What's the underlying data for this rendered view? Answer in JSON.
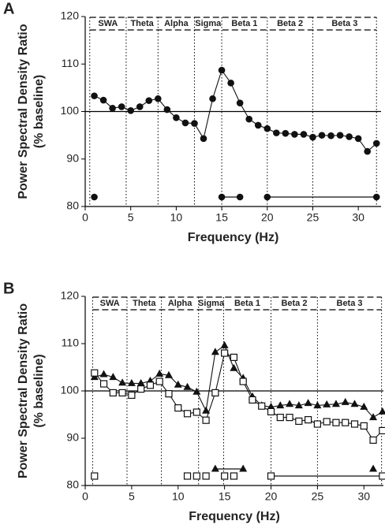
{
  "chart_data": [
    {
      "type": "line",
      "panel": "A",
      "ylabel": [
        "Power Spectral Density Ratio",
        "(% baseline)"
      ],
      "xlabel": "Frequency (Hz)",
      "xlim": [
        0,
        32.5
      ],
      "ylim": [
        80,
        120
      ],
      "xticks": [
        0,
        5,
        10,
        15,
        20,
        25,
        30
      ],
      "yticks": [
        80,
        90,
        100,
        110,
        120
      ],
      "reference_line": 100,
      "band_edges": [
        0.5,
        4.5,
        8,
        12,
        15,
        20,
        25,
        32
      ],
      "band_labels": [
        "SWA",
        "Theta",
        "Alpha",
        "Sigma",
        "Beta 1",
        "Beta 2",
        "Beta 3"
      ],
      "x": [
        1,
        2,
        3,
        4,
        5,
        6,
        7,
        8,
        9,
        10,
        11,
        12,
        13,
        14,
        15,
        16,
        17,
        18,
        19,
        20,
        21,
        22,
        23,
        24,
        25,
        26,
        27,
        28,
        29,
        30,
        31,
        32
      ],
      "series": [
        {
          "color": "#111111",
          "marker": "circle",
          "values": [
            103.3,
            102.4,
            100.7,
            101.0,
            100.2,
            101.0,
            102.3,
            102.7,
            100.4,
            98.7,
            97.6,
            97.5,
            94.3,
            102.7,
            108.7,
            106.0,
            101.8,
            98.4,
            97.1,
            96.4,
            95.5,
            95.4,
            95.2,
            95.2,
            94.6,
            95.0,
            94.9,
            95.0,
            94.7,
            94.3,
            91.6,
            93.3
          ],
          "significant_segments": [
            [
              1,
              1
            ],
            [
              15,
              17
            ],
            [
              20,
              32
            ]
          ]
        }
      ]
    },
    {
      "type": "line",
      "panel": "B",
      "ylabel": [
        "Power Spectral Density Ratio",
        "(% baseline)"
      ],
      "xlabel": "Frequency (Hz)",
      "xlim": [
        0,
        32.1
      ],
      "ylim": [
        80,
        120
      ],
      "xticks": [
        0,
        5,
        10,
        15,
        20,
        25,
        30
      ],
      "yticks": [
        80,
        90,
        100,
        110,
        120
      ],
      "reference_line": 100,
      "band_edges": [
        0.8,
        4.5,
        8.2,
        12.2,
        14.9,
        20,
        25,
        31.9
      ],
      "band_labels": [
        "SWA",
        "Theta",
        "Alpha",
        "Sigma",
        "Beta 1",
        "Beta 2",
        "Beta 3"
      ],
      "x": [
        1,
        2,
        3,
        4,
        5,
        6,
        7,
        8,
        9,
        10,
        11,
        12,
        13,
        14,
        15,
        16,
        17,
        18,
        19,
        20,
        21,
        22,
        23,
        24,
        25,
        26,
        27,
        28,
        29,
        30,
        31,
        32
      ],
      "series": [
        {
          "color": "#111111",
          "marker": "triangle",
          "values": [
            102.9,
            103.5,
            102.9,
            101.7,
            101.6,
            101.6,
            102.1,
            103.6,
            103.3,
            101.3,
            100.8,
            99.8,
            95.8,
            108.2,
            109.6,
            104.8,
            102.7,
            98.8,
            96.9,
            96.6,
            96.9,
            97.2,
            96.9,
            97.4,
            96.9,
            97.1,
            97.2,
            97.6,
            97.2,
            96.6,
            94.4,
            95.6
          ],
          "significant_segments": [
            [
              14,
              17
            ],
            [
              31,
              31
            ]
          ]
        },
        {
          "color": "#111111",
          "marker": "square-open",
          "values": [
            103.8,
            101.5,
            99.6,
            99.6,
            99.1,
            100.4,
            101.2,
            102.0,
            99.4,
            96.4,
            95.2,
            95.5,
            93.8,
            99.6,
            108.0,
            107.1,
            102.0,
            98.1,
            96.8,
            95.6,
            94.4,
            94.4,
            93.6,
            93.9,
            93.0,
            93.5,
            93.3,
            93.3,
            93.0,
            92.6,
            89.6,
            91.6
          ],
          "significant_segments": [
            [
              1,
              1
            ],
            [
              11,
              11
            ],
            [
              12,
              12
            ],
            [
              13,
              13
            ],
            [
              15,
              15
            ],
            [
              16,
              16
            ],
            [
              20,
              32
            ]
          ]
        }
      ]
    }
  ]
}
